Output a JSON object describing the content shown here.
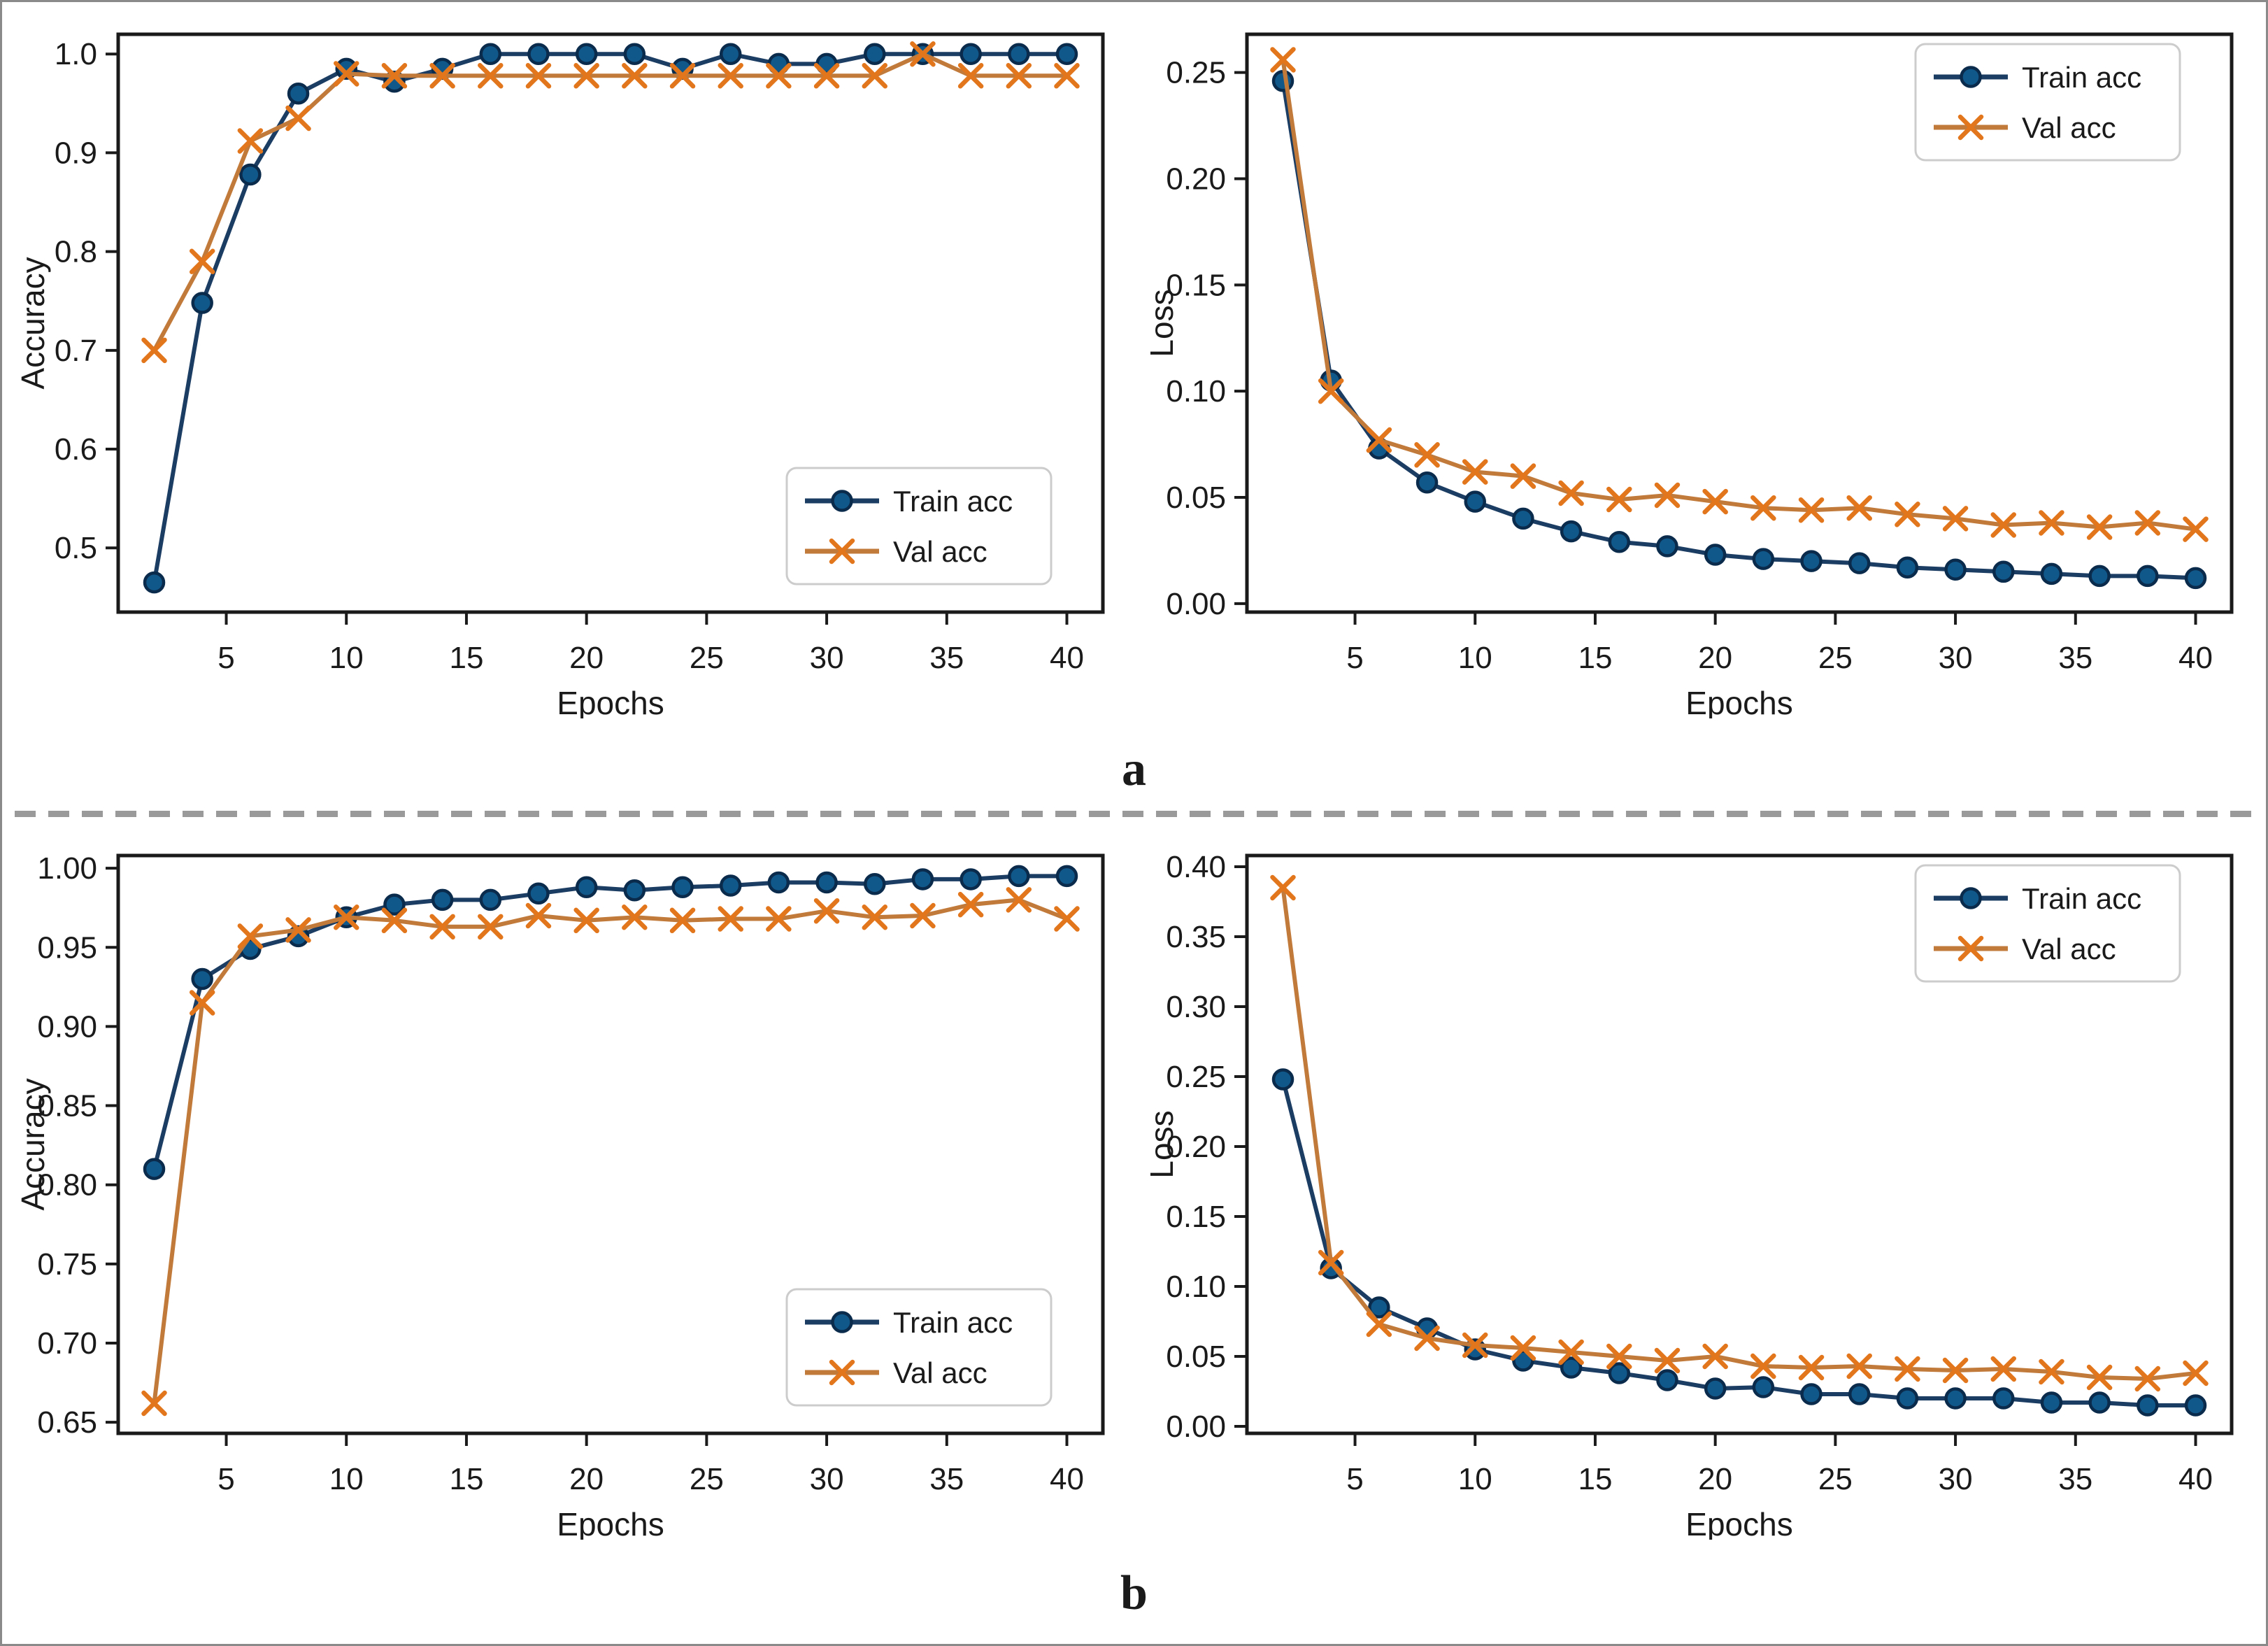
{
  "figure": {
    "panels": [
      {
        "label": "a"
      },
      {
        "label": "b"
      }
    ]
  },
  "colors": {
    "train_line": "#1c3d63",
    "train_marker_fill": "#11588a",
    "train_marker_edge": "#0b2b4c",
    "val_line": "#c27a3a",
    "val_marker": "#e2761c",
    "spine": "#1a1a1a",
    "text": "#1a1a1a",
    "legend_border": "#cccccc",
    "divider": "#9a9a9a",
    "frame_border": "#8a8a8a"
  },
  "chart_data": [
    {
      "panel": "a",
      "type": "line",
      "title": "",
      "xlabel": "Epochs",
      "ylabel": "Accuracy",
      "x": [
        2,
        4,
        6,
        8,
        10,
        12,
        14,
        16,
        18,
        20,
        22,
        24,
        26,
        28,
        30,
        32,
        34,
        36,
        38,
        40
      ],
      "series": [
        {
          "name": "Train acc",
          "marker": "circle",
          "values": [
            0.465,
            0.748,
            0.878,
            0.96,
            0.985,
            0.972,
            0.985,
            1.0,
            1.0,
            1.0,
            1.0,
            0.985,
            1.0,
            0.99,
            0.99,
            1.0,
            1.0,
            1.0,
            1.0,
            1.0
          ]
        },
        {
          "name": "Val acc",
          "marker": "x",
          "values": [
            0.7,
            0.79,
            0.912,
            0.935,
            0.98,
            0.978,
            0.978,
            0.978,
            0.978,
            0.978,
            0.978,
            0.978,
            0.978,
            0.978,
            0.978,
            0.978,
            1.0,
            0.978,
            0.978,
            0.978
          ]
        }
      ],
      "xlim": [
        0.5,
        41.5
      ],
      "xticks": [
        5,
        10,
        15,
        20,
        25,
        30,
        35,
        40
      ],
      "ylim": [
        0.435,
        1.02
      ],
      "yticks": [
        0.5,
        0.6,
        0.7,
        0.8,
        0.9,
        1.0
      ],
      "ytick_decimals": 1,
      "grid": false,
      "legend_position": "bottom-right"
    },
    {
      "panel": "a",
      "type": "line",
      "title": "",
      "xlabel": "Epochs",
      "ylabel": "Loss",
      "x": [
        2,
        4,
        6,
        8,
        10,
        12,
        14,
        16,
        18,
        20,
        22,
        24,
        26,
        28,
        30,
        32,
        34,
        36,
        38,
        40
      ],
      "series": [
        {
          "name": "Train acc",
          "marker": "circle",
          "values": [
            0.246,
            0.105,
            0.073,
            0.057,
            0.048,
            0.04,
            0.034,
            0.029,
            0.027,
            0.023,
            0.021,
            0.02,
            0.019,
            0.017,
            0.016,
            0.015,
            0.014,
            0.013,
            0.013,
            0.012
          ]
        },
        {
          "name": "Val acc",
          "marker": "x",
          "values": [
            0.256,
            0.1,
            0.077,
            0.07,
            0.062,
            0.06,
            0.052,
            0.049,
            0.051,
            0.048,
            0.045,
            0.044,
            0.045,
            0.042,
            0.04,
            0.037,
            0.038,
            0.036,
            0.038,
            0.035
          ]
        }
      ],
      "xlim": [
        0.5,
        41.5
      ],
      "xticks": [
        5,
        10,
        15,
        20,
        25,
        30,
        35,
        40
      ],
      "ylim": [
        -0.004,
        0.268
      ],
      "yticks": [
        0.0,
        0.05,
        0.1,
        0.15,
        0.2,
        0.25
      ],
      "ytick_decimals": 2,
      "grid": false,
      "legend_position": "top-right"
    },
    {
      "panel": "b",
      "type": "line",
      "title": "",
      "xlabel": "Epochs",
      "ylabel": "Accuracy",
      "x": [
        2,
        4,
        6,
        8,
        10,
        12,
        14,
        16,
        18,
        20,
        22,
        24,
        26,
        28,
        30,
        32,
        34,
        36,
        38,
        40
      ],
      "series": [
        {
          "name": "Train acc",
          "marker": "circle",
          "values": [
            0.81,
            0.93,
            0.949,
            0.957,
            0.969,
            0.977,
            0.98,
            0.98,
            0.984,
            0.988,
            0.986,
            0.988,
            0.989,
            0.991,
            0.991,
            0.99,
            0.993,
            0.993,
            0.995,
            0.995
          ]
        },
        {
          "name": "Val acc",
          "marker": "x",
          "values": [
            0.662,
            0.915,
            0.957,
            0.961,
            0.969,
            0.967,
            0.963,
            0.963,
            0.97,
            0.967,
            0.969,
            0.967,
            0.968,
            0.968,
            0.973,
            0.969,
            0.97,
            0.977,
            0.98,
            0.968
          ]
        }
      ],
      "xlim": [
        0.5,
        41.5
      ],
      "xticks": [
        5,
        10,
        15,
        20,
        25,
        30,
        35,
        40
      ],
      "ylim": [
        0.643,
        1.008
      ],
      "yticks": [
        0.65,
        0.7,
        0.75,
        0.8,
        0.85,
        0.9,
        0.95,
        1.0
      ],
      "ytick_decimals": 2,
      "grid": false,
      "legend_position": "bottom-right"
    },
    {
      "panel": "b",
      "type": "line",
      "title": "",
      "xlabel": "Epochs",
      "ylabel": "Loss",
      "x": [
        2,
        4,
        6,
        8,
        10,
        12,
        14,
        16,
        18,
        20,
        22,
        24,
        26,
        28,
        30,
        32,
        34,
        36,
        38,
        40
      ],
      "series": [
        {
          "name": "Train acc",
          "marker": "circle",
          "values": [
            0.248,
            0.113,
            0.085,
            0.07,
            0.055,
            0.047,
            0.042,
            0.038,
            0.033,
            0.027,
            0.028,
            0.023,
            0.023,
            0.02,
            0.02,
            0.02,
            0.017,
            0.017,
            0.015,
            0.015
          ]
        },
        {
          "name": "Val acc",
          "marker": "x",
          "values": [
            0.385,
            0.117,
            0.073,
            0.063,
            0.058,
            0.056,
            0.053,
            0.05,
            0.047,
            0.05,
            0.043,
            0.042,
            0.043,
            0.041,
            0.04,
            0.041,
            0.039,
            0.035,
            0.034,
            0.038
          ]
        }
      ],
      "xlim": [
        0.5,
        41.5
      ],
      "xticks": [
        5,
        10,
        15,
        20,
        25,
        30,
        35,
        40
      ],
      "ylim": [
        -0.005,
        0.408
      ],
      "yticks": [
        0.0,
        0.05,
        0.1,
        0.15,
        0.2,
        0.25,
        0.3,
        0.35,
        0.4
      ],
      "ytick_decimals": 2,
      "grid": false,
      "legend_position": "top-right"
    }
  ]
}
